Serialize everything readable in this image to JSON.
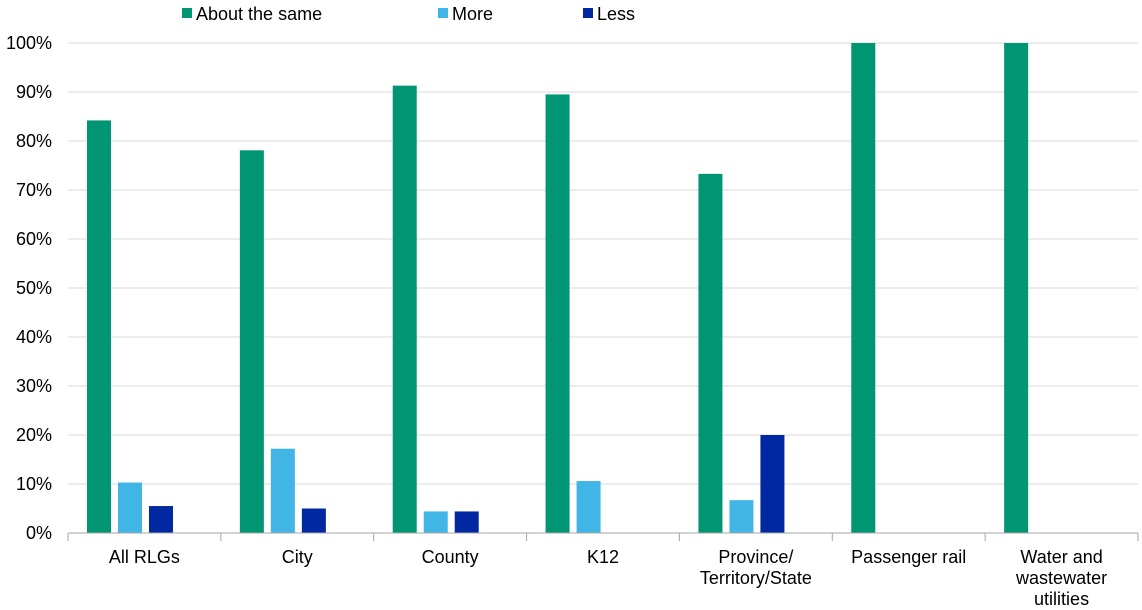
{
  "chart_data": {
    "type": "bar",
    "categories": [
      [
        "All RLGs"
      ],
      [
        "City"
      ],
      [
        "County"
      ],
      [
        "K12"
      ],
      [
        "Province/",
        "Territory/State"
      ],
      [
        "Passenger rail"
      ],
      [
        "Water and",
        "wastewater",
        "utilities"
      ]
    ],
    "series": [
      {
        "name": "About the same",
        "color": "#009673",
        "values": [
          84.2,
          78.1,
          91.3,
          89.5,
          73.3,
          100,
          100
        ]
      },
      {
        "name": "More",
        "color": "#41B6E6",
        "values": [
          10.3,
          17.2,
          4.4,
          10.6,
          6.7,
          0,
          0
        ]
      },
      {
        "name": "Less",
        "color": "#0028A0",
        "values": [
          5.5,
          5.0,
          4.4,
          0,
          20.0,
          0,
          0
        ]
      }
    ],
    "yticks": [
      "0%",
      "10%",
      "20%",
      "30%",
      "40%",
      "50%",
      "60%",
      "70%",
      "80%",
      "90%",
      "100%"
    ],
    "ylim": [
      0,
      100
    ],
    "grid": true,
    "legend_position": "top"
  }
}
